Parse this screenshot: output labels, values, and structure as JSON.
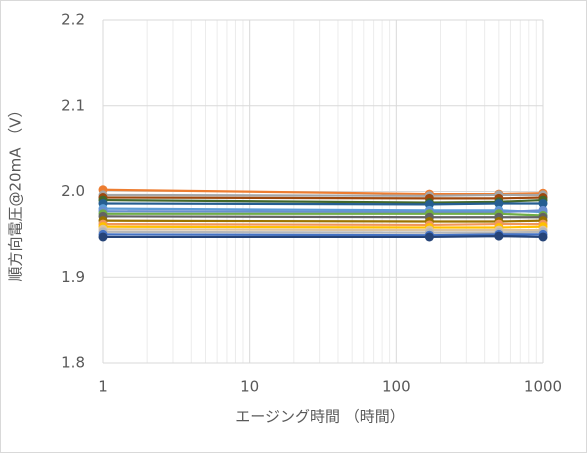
{
  "chart_data": {
    "type": "line",
    "x_label": "エージング時間 （時間）",
    "y_label": "順方向電圧@20mA （V）",
    "x": [
      1,
      168,
      500,
      1000
    ],
    "xlog": true,
    "xlim": [
      1,
      1000
    ],
    "xticks": [
      1,
      10,
      100,
      1000
    ],
    "ylim": [
      1.8,
      2.2
    ],
    "yticks": [
      1.8,
      1.9,
      {
        "value": 2.0,
        "label": "2.0"
      },
      2.1,
      2.2
    ],
    "grid": true,
    "series": [
      {
        "color": "#ed7d31",
        "values": [
          2.002,
          1.997,
          1.997,
          1.998
        ]
      },
      {
        "color": "#a5a5a5",
        "values": [
          1.996,
          1.995,
          1.996,
          1.996
        ]
      },
      {
        "color": "#9e480e",
        "values": [
          1.993,
          1.992,
          1.992,
          1.993
        ]
      },
      {
        "color": "#43682b",
        "values": [
          1.99,
          1.987,
          1.988,
          1.99
        ]
      },
      {
        "color": "#255e91",
        "values": [
          1.986,
          1.985,
          1.986,
          1.986
        ]
      },
      {
        "color": "#5b9bd5",
        "values": [
          1.98,
          1.978,
          1.978,
          1.976
        ]
      },
      {
        "color": "#698ed0",
        "values": [
          1.977,
          1.976,
          1.976,
          1.978
        ]
      },
      {
        "color": "#70ad47",
        "values": [
          1.974,
          1.974,
          1.974,
          1.972
        ]
      },
      {
        "color": "#636363",
        "values": [
          1.971,
          1.97,
          1.97,
          1.97
        ]
      },
      {
        "color": "#997300",
        "values": [
          1.966,
          1.965,
          1.965,
          1.966
        ]
      },
      {
        "color": "#f1975a",
        "values": [
          1.962,
          1.961,
          1.962,
          1.962
        ]
      },
      {
        "color": "#ffc000",
        "values": [
          1.959,
          1.958,
          1.958,
          1.959
        ]
      },
      {
        "color": "#dbc3a0",
        "values": [
          1.956,
          1.955,
          1.955,
          1.955
        ]
      },
      {
        "color": "#b7b7b7",
        "values": [
          1.953,
          1.952,
          1.952,
          1.953
        ]
      },
      {
        "color": "#4472c4",
        "values": [
          1.95,
          1.949,
          1.95,
          1.95
        ]
      },
      {
        "color": "#264478",
        "values": [
          1.947,
          1.947,
          1.948,
          1.947
        ]
      }
    ]
  }
}
